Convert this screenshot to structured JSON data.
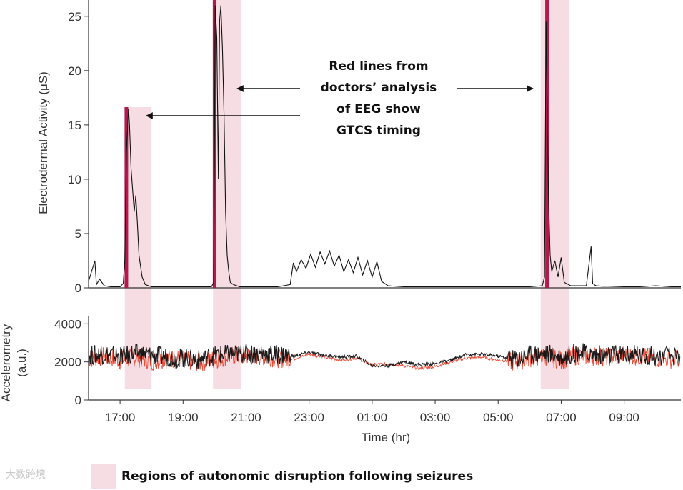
{
  "chart_data": [
    {
      "type": "line",
      "ylabel": "Electrodermal Activity (μS)",
      "ylim": [
        0,
        26.5
      ],
      "yticks": [
        0,
        5,
        10,
        15,
        20,
        25
      ],
      "series": [
        {
          "color": "#111111",
          "x": [
            16.0,
            16.2,
            16.25,
            16.35,
            16.5,
            16.7,
            17.0,
            17.1,
            17.15,
            17.2,
            17.27,
            17.3,
            17.35,
            17.4,
            17.45,
            17.5,
            17.55,
            17.6,
            17.7,
            17.8,
            17.9,
            18.0,
            18.5,
            19.0,
            19.5,
            19.9,
            19.97,
            20.02,
            20.07,
            20.12,
            20.16,
            20.2,
            20.25,
            20.3,
            20.35,
            20.4,
            20.45,
            20.5,
            20.6,
            20.7,
            20.8,
            21.0,
            22.0,
            22.4,
            22.5,
            22.6,
            22.75,
            22.9,
            23.05,
            23.2,
            23.35,
            23.5,
            23.65,
            23.8,
            23.95,
            24.1,
            24.25,
            24.4,
            24.55,
            24.7,
            24.85,
            25.0,
            25.15,
            25.3,
            25.5,
            26.0,
            27.0,
            28.0,
            29.0,
            30.0,
            30.4,
            30.47,
            30.52,
            30.55,
            30.6,
            30.65,
            30.7,
            30.8,
            30.9,
            31.0,
            31.1,
            31.3,
            31.8,
            31.95,
            32.0,
            32.05,
            32.1,
            32.3,
            32.5,
            33.0,
            33.5,
            34.0,
            34.5,
            34.8
          ],
          "y": [
            0.6,
            2.5,
            0.3,
            0.8,
            0.2,
            0.1,
            0.1,
            0.4,
            2.5,
            12.5,
            16.5,
            15.0,
            11.0,
            9.0,
            7.0,
            8.5,
            6.0,
            3.0,
            1.0,
            0.3,
            0.2,
            0.1,
            0.1,
            0.1,
            0.1,
            0.1,
            0.5,
            26.0,
            23.0,
            10.0,
            24.5,
            26.0,
            22.0,
            16.0,
            7.0,
            3.0,
            1.5,
            0.5,
            0.3,
            0.2,
            0.1,
            0.1,
            0.1,
            0.3,
            2.3,
            1.5,
            2.6,
            1.8,
            3.1,
            1.9,
            3.3,
            2.2,
            3.4,
            2.0,
            3.0,
            1.5,
            2.6,
            1.4,
            2.8,
            1.2,
            2.5,
            1.0,
            2.4,
            0.6,
            0.2,
            0.1,
            0.1,
            0.1,
            0.1,
            0.1,
            0.2,
            1.0,
            24.5,
            18.0,
            8.0,
            3.0,
            1.5,
            2.5,
            1.0,
            2.8,
            0.5,
            0.2,
            0.2,
            3.8,
            0.4,
            0.3,
            0.2,
            0.15,
            0.15,
            0.1,
            0.1,
            0.2,
            0.1,
            0.1
          ]
        }
      ],
      "gtcs_markers": [
        17.2,
        20.0,
        30.55
      ],
      "disruption_regions": [
        [
          17.15,
          18.0
        ],
        [
          19.95,
          20.85
        ],
        [
          30.35,
          31.25
        ]
      ]
    },
    {
      "type": "line",
      "xlabel": "Time (hr)",
      "ylabel": "Accelerometry\n(a.u.)",
      "ylim": [
        0,
        4200
      ],
      "yticks": [
        0,
        2000,
        4000
      ],
      "xlim": [
        16.0,
        34.8
      ],
      "xticks": [
        17,
        19,
        21,
        23,
        25,
        27,
        29,
        31,
        33
      ],
      "xtick_labels": [
        "17:00",
        "19:00",
        "21:00",
        "23:00",
        "01:00",
        "03:00",
        "05:00",
        "07:00",
        "09:00"
      ],
      "series": [
        {
          "color": "#e8402a",
          "x": [
            16.0,
            16.5,
            17.0,
            17.5,
            18.0,
            18.5,
            19.0,
            19.5,
            20.0,
            20.5,
            21.0,
            21.5,
            22.0,
            22.5,
            23.0,
            23.5,
            24.0,
            24.5,
            25.0,
            25.5,
            26.0,
            26.5,
            27.0,
            27.5,
            28.0,
            28.5,
            29.0,
            29.5,
            30.0,
            30.5,
            31.0,
            31.5,
            32.0,
            32.5,
            33.0,
            33.5,
            34.0,
            34.8
          ],
          "y": [
            2150,
            2300,
            2100,
            2250,
            2050,
            2200,
            2100,
            1950,
            2150,
            2300,
            2350,
            2300,
            2200,
            2150,
            2400,
            2250,
            2100,
            2200,
            1850,
            1900,
            1800,
            1650,
            1750,
            2000,
            2200,
            2250,
            2100,
            2000,
            2200,
            2300,
            2100,
            2350,
            2300,
            2250,
            2350,
            2300,
            2200,
            2150
          ]
        },
        {
          "color": "#111111",
          "x": [
            16.0,
            16.5,
            17.0,
            17.5,
            18.0,
            18.5,
            19.0,
            19.5,
            20.0,
            20.5,
            21.0,
            21.5,
            22.0,
            22.5,
            23.0,
            23.5,
            24.0,
            24.5,
            25.0,
            25.5,
            26.0,
            26.5,
            27.0,
            27.5,
            28.0,
            28.5,
            29.0,
            29.5,
            30.0,
            30.5,
            31.0,
            31.5,
            32.0,
            32.5,
            33.0,
            33.5,
            34.0,
            34.8
          ],
          "y": [
            2350,
            2400,
            2300,
            2450,
            2350,
            2250,
            2200,
            2100,
            2350,
            2400,
            2450,
            2400,
            2400,
            2300,
            2500,
            2350,
            2250,
            2300,
            1800,
            1800,
            2000,
            1850,
            1900,
            2100,
            2400,
            2400,
            2300,
            2150,
            2400,
            2450,
            2250,
            2500,
            2400,
            2350,
            2400,
            2350,
            2300,
            2250
          ]
        }
      ],
      "disruption_regions": [
        [
          17.15,
          18.0
        ],
        [
          19.95,
          20.85
        ],
        [
          30.35,
          31.25
        ]
      ]
    }
  ],
  "annotation": {
    "lines": [
      "Red lines from",
      "doctors’ analysis",
      "of EEG show",
      "GTCS timing"
    ]
  },
  "legend": {
    "label": "Regions of autonomic disruption following seizures",
    "swatch_color": "#f6dde3"
  },
  "watermark": "大数跨境",
  "colors": {
    "gtcs_marker": "#b3194a",
    "region_fill": "#f6dde3",
    "axis": "#333333"
  }
}
